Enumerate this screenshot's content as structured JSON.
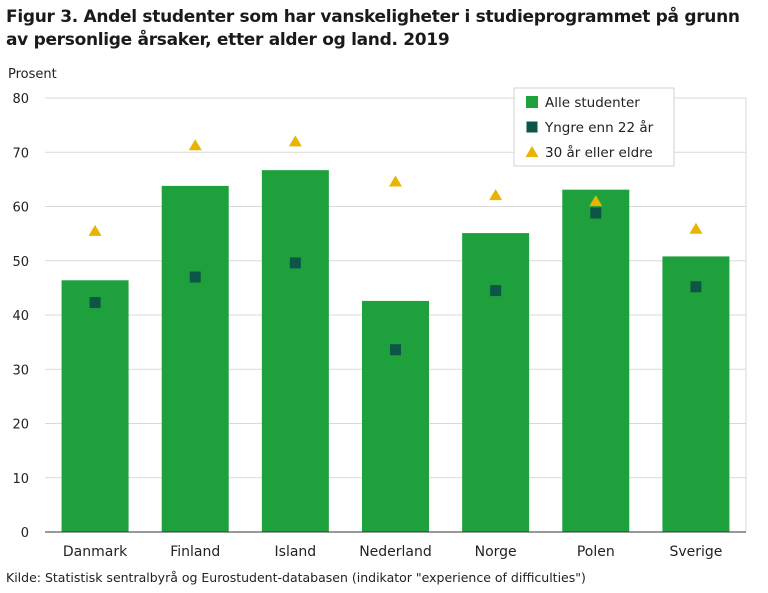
{
  "title": "Figur 3. Andel studenter som har vanskeligheter i studieprogrammet på grunn av personlige årsaker, etter alder og land. 2019",
  "source": "Kilde: Statistisk sentralbyrå og Eurostudent-databasen (indikator \"experience of difficulties\")",
  "colors": {
    "bar": "#1ea03c",
    "young": "#0d5546",
    "old": "#e8b400",
    "grid": "#d9d9d9"
  },
  "chart_data": {
    "type": "bar",
    "ylabel": "Prosent",
    "ylim": [
      0,
      80
    ],
    "yticks": [
      0,
      10,
      20,
      30,
      40,
      50,
      60,
      70,
      80
    ],
    "grid": true,
    "legend_position": "top-right",
    "categories": [
      "Danmark",
      "Finland",
      "Island",
      "Nederland",
      "Norge",
      "Polen",
      "Sverige"
    ],
    "series": [
      {
        "name": "Alle studenter",
        "type": "bar",
        "marker": "bar-icon",
        "values": [
          46.4,
          63.8,
          66.7,
          42.6,
          55.1,
          63.1,
          50.8
        ]
      },
      {
        "name": "Yngre enn 22 år",
        "type": "scatter",
        "marker": "square-icon",
        "values": [
          42.3,
          47.0,
          49.6,
          33.6,
          44.5,
          58.8,
          45.2
        ]
      },
      {
        "name": "30 år eller eldre",
        "type": "scatter",
        "marker": "triangle-icon",
        "values": [
          55.5,
          71.3,
          72.0,
          64.6,
          62.1,
          61.0,
          55.9
        ]
      }
    ]
  }
}
